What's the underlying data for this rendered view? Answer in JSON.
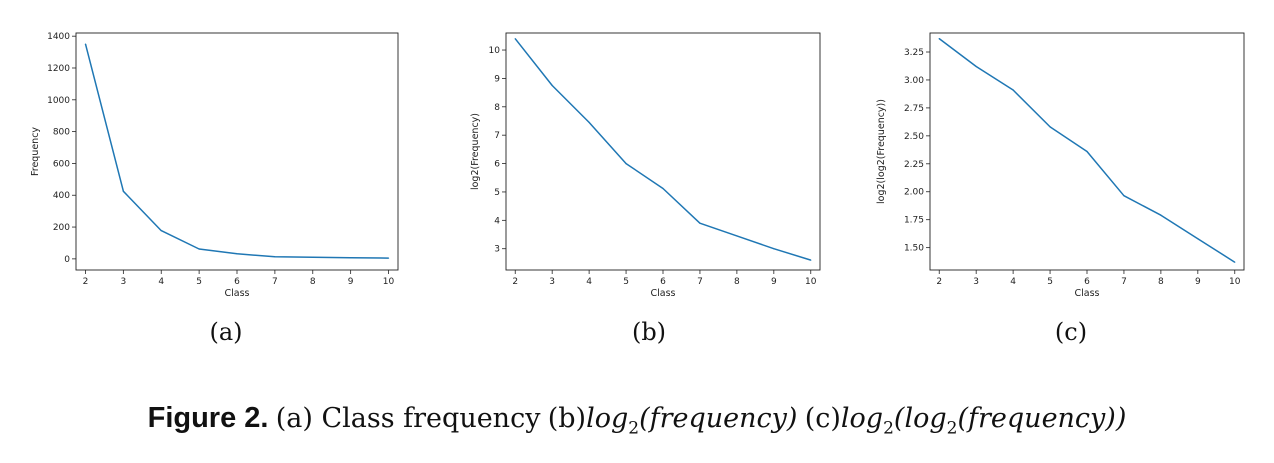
{
  "chart_data": [
    {
      "type": "line",
      "xlabel": "Class",
      "ylabel": "Frequency",
      "x": [
        2,
        3,
        4,
        5,
        6,
        7,
        8,
        9,
        10
      ],
      "y": [
        1350,
        425,
        178,
        62,
        32,
        13,
        10,
        7,
        5
      ],
      "xlim": [
        1.75,
        10.25
      ],
      "ylim": [
        -70,
        1420
      ],
      "xticks": [
        2,
        3,
        4,
        5,
        6,
        7,
        8,
        9,
        10
      ],
      "yticks": [
        0,
        200,
        400,
        600,
        800,
        1000,
        1200,
        1400
      ],
      "ytick_labels": [
        "0",
        "200",
        "400",
        "600",
        "800",
        "1000",
        "1200",
        "1400"
      ],
      "color": "#1f77b4"
    },
    {
      "type": "line",
      "xlabel": "Class",
      "ylabel": "log2(Frequency)",
      "x": [
        2,
        3,
        4,
        5,
        6,
        7,
        8,
        9,
        10
      ],
      "y": [
        10.4,
        8.75,
        7.45,
        6.0,
        5.12,
        3.9,
        3.45,
        3.0,
        2.6
      ],
      "xlim": [
        1.75,
        10.25
      ],
      "ylim": [
        2.25,
        10.6
      ],
      "xticks": [
        2,
        3,
        4,
        5,
        6,
        7,
        8,
        9,
        10
      ],
      "yticks": [
        3,
        4,
        5,
        6,
        7,
        8,
        9,
        10
      ],
      "ytick_labels": [
        "3",
        "4",
        "5",
        "6",
        "7",
        "8",
        "9",
        "10"
      ],
      "color": "#1f77b4"
    },
    {
      "type": "line",
      "xlabel": "Class",
      "ylabel": "log2(log2(Frequency))",
      "x": [
        2,
        3,
        4,
        5,
        6,
        7,
        8,
        9,
        10
      ],
      "y": [
        3.37,
        3.12,
        2.91,
        2.58,
        2.36,
        1.965,
        1.79,
        1.58,
        1.37
      ],
      "xlim": [
        1.75,
        10.25
      ],
      "ylim": [
        1.3,
        3.42
      ],
      "xticks": [
        2,
        3,
        4,
        5,
        6,
        7,
        8,
        9,
        10
      ],
      "yticks": [
        1.5,
        1.75,
        2.0,
        2.25,
        2.5,
        2.75,
        3.0,
        3.25
      ],
      "ytick_labels": [
        "1.50",
        "1.75",
        "2.00",
        "2.25",
        "2.50",
        "2.75",
        "3.00",
        "3.25"
      ],
      "color": "#1f77b4"
    }
  ],
  "subcaptions": [
    "(a)",
    "(b)",
    "(c)"
  ],
  "caption": {
    "label": "Figure 2.",
    "part_a": "(a) Class frequency",
    "part_b_prefix": "(b)",
    "part_b_math_fn": "log",
    "part_b_math_sub": "2",
    "part_b_math_arg": "(frequency)",
    "part_c_prefix": "(c)",
    "part_c_math_fn": "log",
    "part_c_math_sub": "2",
    "part_c_math_open": "(",
    "part_c_math_fn2": "log",
    "part_c_math_sub2": "2",
    "part_c_math_arg": "(frequency))"
  }
}
